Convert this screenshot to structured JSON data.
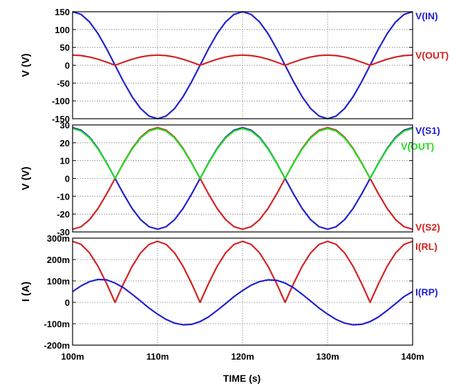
{
  "chart_data": [
    {
      "type": "line",
      "ylabel": "V  (V)",
      "xlim": [
        100,
        140
      ],
      "ylim": [
        -150,
        150
      ],
      "yticks": [
        -150,
        -100,
        -50,
        0,
        50,
        100,
        150
      ],
      "ytick_labels": [
        "-150",
        "-100",
        "-50",
        "0",
        "50",
        "100",
        "150"
      ],
      "grid": true,
      "series": [
        {
          "name": "V(IN)",
          "color": "#1f1fd0",
          "x": [
            100,
            101,
            102,
            103,
            104,
            105,
            106,
            107,
            108,
            109,
            110,
            111,
            112,
            113,
            114,
            115,
            116,
            117,
            118,
            119,
            120,
            121,
            122,
            123,
            124,
            125,
            126,
            127,
            128,
            129,
            130,
            131,
            132,
            133,
            134,
            135,
            136,
            137,
            138,
            139,
            140
          ],
          "y": [
            150,
            142.7,
            121.4,
            88.2,
            46.4,
            0,
            -46.4,
            -88.2,
            -121.4,
            -142.7,
            -150,
            -142.7,
            -121.4,
            -88.2,
            -46.4,
            0,
            46.4,
            88.2,
            121.4,
            142.7,
            150,
            142.7,
            121.4,
            88.2,
            46.4,
            0,
            -46.4,
            -88.2,
            -121.4,
            -142.7,
            -150,
            -142.7,
            -121.4,
            -88.2,
            -46.4,
            0,
            46.4,
            88.2,
            121.4,
            142.7,
            150
          ]
        },
        {
          "name": "V(OUT)",
          "color": "#d42020",
          "x": [
            100,
            101,
            102,
            103,
            104,
            105,
            106,
            107,
            108,
            109,
            110,
            111,
            112,
            113,
            114,
            115,
            116,
            117,
            118,
            119,
            120,
            121,
            122,
            123,
            124,
            125,
            126,
            127,
            128,
            129,
            130,
            131,
            132,
            133,
            134,
            135,
            136,
            137,
            138,
            139,
            140
          ],
          "y": [
            28.5,
            27.1,
            23.1,
            16.8,
            8.8,
            0,
            8.8,
            16.8,
            23.1,
            27.1,
            28.5,
            27.1,
            23.1,
            16.8,
            8.8,
            0,
            8.8,
            16.8,
            23.1,
            27.1,
            28.5,
            27.1,
            23.1,
            16.8,
            8.8,
            0,
            8.8,
            16.8,
            23.1,
            27.1,
            28.5,
            27.1,
            23.1,
            16.8,
            8.8,
            0,
            8.8,
            16.8,
            23.1,
            27.1,
            28.5
          ]
        }
      ]
    },
    {
      "type": "line",
      "ylabel": "V  (V)",
      "xlim": [
        100,
        140
      ],
      "ylim": [
        -30,
        30
      ],
      "yticks": [
        -30,
        -20,
        -10,
        0,
        10,
        20,
        30
      ],
      "ytick_labels": [
        "-30",
        "-20",
        "-10",
        "0",
        "10",
        "20",
        "30"
      ],
      "grid": true,
      "series": [
        {
          "name": "V(S1)",
          "color": "#1f1fd0",
          "x": [
            100,
            101,
            102,
            103,
            104,
            105,
            106,
            107,
            108,
            109,
            110,
            111,
            112,
            113,
            114,
            115,
            116,
            117,
            118,
            119,
            120,
            121,
            122,
            123,
            124,
            125,
            126,
            127,
            128,
            129,
            130,
            131,
            132,
            133,
            134,
            135,
            136,
            137,
            138,
            139,
            140
          ],
          "y": [
            28.5,
            27.1,
            23.1,
            16.8,
            8.8,
            0,
            -8.8,
            -16.8,
            -23.1,
            -27.1,
            -28.5,
            -27.1,
            -23.1,
            -16.8,
            -8.8,
            0,
            8.8,
            16.8,
            23.1,
            27.1,
            28.5,
            27.1,
            23.1,
            16.8,
            8.8,
            0,
            -8.8,
            -16.8,
            -23.1,
            -27.1,
            -28.5,
            -27.1,
            -23.1,
            -16.8,
            -8.8,
            0,
            8.8,
            16.8,
            23.1,
            27.1,
            28.5
          ]
        },
        {
          "name": "V(S2)",
          "color": "#d42020",
          "x": [
            100,
            101,
            102,
            103,
            104,
            105,
            106,
            107,
            108,
            109,
            110,
            111,
            112,
            113,
            114,
            115,
            116,
            117,
            118,
            119,
            120,
            121,
            122,
            123,
            124,
            125,
            126,
            127,
            128,
            129,
            130,
            131,
            132,
            133,
            134,
            135,
            136,
            137,
            138,
            139,
            140
          ],
          "y": [
            -28.5,
            -27.1,
            -23.1,
            -16.8,
            -8.8,
            0,
            8.8,
            16.8,
            23.1,
            27.1,
            28.5,
            27.1,
            23.1,
            16.8,
            8.8,
            0,
            -8.8,
            -16.8,
            -23.1,
            -27.1,
            -28.5,
            -27.1,
            -23.1,
            -16.8,
            -8.8,
            0,
            8.8,
            16.8,
            23.1,
            27.1,
            28.5,
            27.1,
            23.1,
            16.8,
            8.8,
            0,
            -8.8,
            -16.8,
            -23.1,
            -27.1,
            -28.5
          ]
        },
        {
          "name": "V(OUT)",
          "color": "#22dd22",
          "x": [
            100,
            101,
            102,
            103,
            104,
            105,
            106,
            107,
            108,
            109,
            110,
            111,
            112,
            113,
            114,
            115,
            116,
            117,
            118,
            119,
            120,
            121,
            122,
            123,
            124,
            125,
            126,
            127,
            128,
            129,
            130,
            131,
            132,
            133,
            134,
            135,
            136,
            137,
            138,
            139,
            140
          ],
          "y": [
            28.0,
            26.6,
            22.7,
            16.5,
            8.6,
            0,
            8.6,
            16.5,
            22.7,
            26.6,
            28.0,
            26.6,
            22.7,
            16.5,
            8.6,
            0,
            8.6,
            16.5,
            22.7,
            26.6,
            28.0,
            26.6,
            22.7,
            16.5,
            8.6,
            0,
            8.6,
            16.5,
            22.7,
            26.6,
            28.0,
            26.6,
            22.7,
            16.5,
            8.6,
            0,
            8.6,
            16.5,
            22.7,
            26.6,
            28.0
          ]
        }
      ]
    },
    {
      "type": "line",
      "ylabel": "I  (A)",
      "xlabel": "TIME  (s)",
      "xlim": [
        100,
        140
      ],
      "xticks": [
        100,
        110,
        120,
        130,
        140
      ],
      "xtick_labels": [
        "100m",
        "110m",
        "120m",
        "130m",
        "140m"
      ],
      "ylim": [
        -200,
        300
      ],
      "yticks": [
        -200,
        -100,
        0,
        100,
        200,
        300
      ],
      "ytick_labels": [
        "-200m",
        "-100m",
        "0",
        "100m",
        "200m",
        "300m"
      ],
      "grid": true,
      "series": [
        {
          "name": "I(RL)",
          "color": "#d42020",
          "x": [
            100,
            101,
            102,
            103,
            104,
            105,
            106,
            107,
            108,
            109,
            110,
            111,
            112,
            113,
            114,
            115,
            116,
            117,
            118,
            119,
            120,
            121,
            122,
            123,
            124,
            125,
            126,
            127,
            128,
            129,
            130,
            131,
            132,
            133,
            134,
            135,
            136,
            137,
            138,
            139,
            140
          ],
          "y": [
            285,
            271,
            231,
            168,
            88,
            0,
            88,
            168,
            231,
            271,
            285,
            271,
            231,
            168,
            88,
            0,
            88,
            168,
            231,
            271,
            285,
            271,
            231,
            168,
            88,
            0,
            88,
            168,
            231,
            271,
            285,
            271,
            231,
            168,
            88,
            0,
            88,
            168,
            231,
            271,
            285
          ]
        },
        {
          "name": "I(RP)",
          "color": "#1f1fd0",
          "x": [
            100,
            101,
            102,
            103,
            104,
            105,
            106,
            107,
            108,
            109,
            110,
            111,
            112,
            113,
            114,
            115,
            116,
            117,
            118,
            119,
            120,
            121,
            122,
            123,
            124,
            125,
            126,
            127,
            128,
            129,
            130,
            131,
            132,
            133,
            134,
            135,
            136,
            137,
            138,
            139,
            140
          ],
          "y": [
            50,
            77,
            97,
            107,
            105,
            90,
            68,
            38,
            6,
            -27,
            -55,
            -80,
            -97,
            -105,
            -103,
            -90,
            -68,
            -38,
            -6,
            27,
            55,
            80,
            97,
            105,
            103,
            90,
            68,
            38,
            6,
            -27,
            -55,
            -80,
            -97,
            -105,
            -103,
            -90,
            -68,
            -38,
            -6,
            27,
            50
          ]
        }
      ]
    }
  ]
}
